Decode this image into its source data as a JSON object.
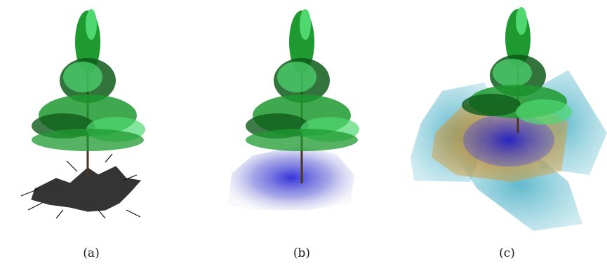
{
  "figure": {
    "panels": [
      {
        "id": "a",
        "caption": "(a)",
        "ground_overlay": "shadow"
      },
      {
        "id": "b",
        "caption": "(b)",
        "ground_overlay": "blue-volume"
      },
      {
        "id": "c",
        "caption": "(c)",
        "ground_overlay": "layered-volumes"
      }
    ]
  },
  "colors": {
    "foliage_dark": "#0f5a1a",
    "foliage_mid": "#1f9a30",
    "foliage_light": "#4fd870",
    "trunk": "#4a3620",
    "shadow": "#111111",
    "volume_blue": "#3a3ad0",
    "volume_orange": "#d08a20",
    "volume_cyan": "#3aa8c0"
  }
}
